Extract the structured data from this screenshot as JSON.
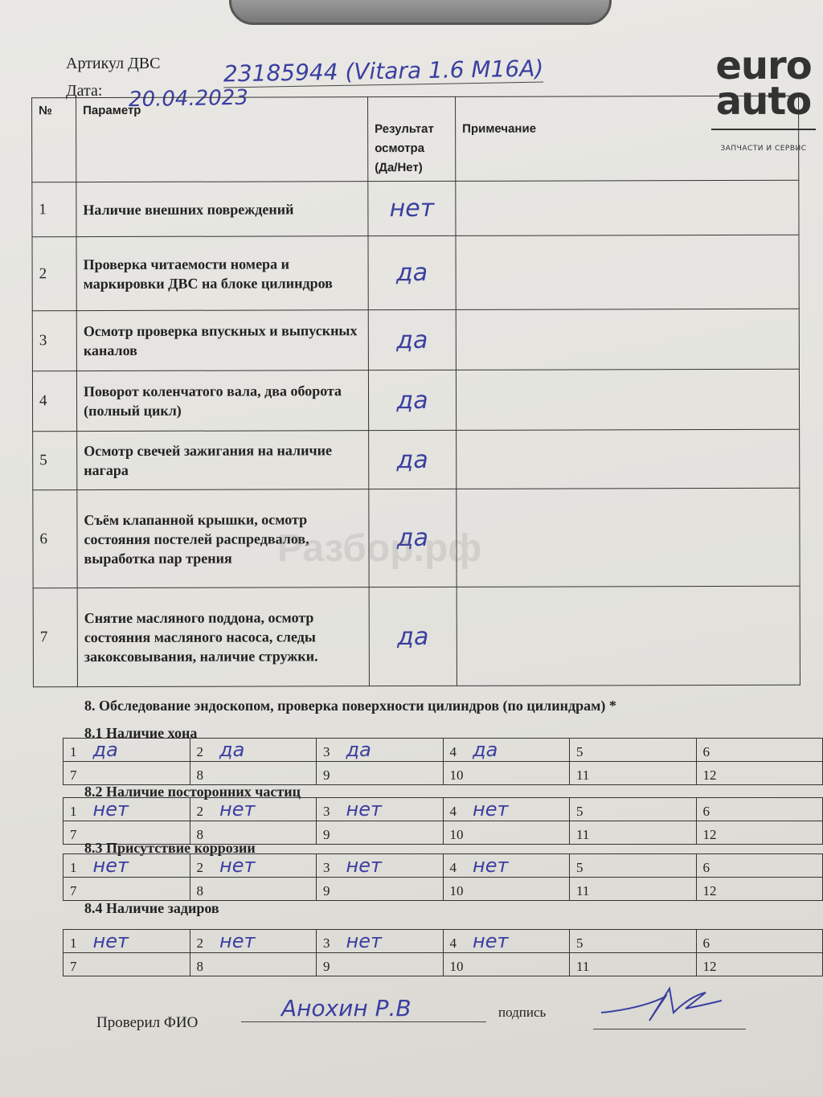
{
  "header": {
    "article_label": "Артикул ДВС",
    "article_value": "23185944 (Vitara 1.6 M16A)",
    "date_label": "Дата:",
    "date_value": "20.04.2023"
  },
  "logo": {
    "line1": "euro",
    "line2": "auto",
    "tagline": "ЗАПЧАСТИ И СЕРВИС"
  },
  "table": {
    "columns": [
      "№",
      "Параметр",
      "Результат осмотра (Да/Нет)",
      "Примечание"
    ],
    "rows": [
      {
        "n": "1",
        "param": "Наличие внешних повреждений",
        "result": "нет",
        "note": ""
      },
      {
        "n": "2",
        "param": "Проверка читаемости номера и маркировки ДВС на блоке цилиндров",
        "result": "да",
        "note": ""
      },
      {
        "n": "3",
        "param": "Осмотр проверка впускных и выпускных каналов",
        "result": "да",
        "note": ""
      },
      {
        "n": "4",
        "param": "Поворот коленчатого вала, два оборота (полный цикл)",
        "result": "да",
        "note": ""
      },
      {
        "n": "5",
        "param": "Осмотр свечей зажигания на наличие нагара",
        "result": "да",
        "note": ""
      },
      {
        "n": "6",
        "param": "Съём клапанной крышки, осмотр состояния постелей распредвалов, выработка пар трения",
        "result": "да",
        "note": ""
      },
      {
        "n": "7",
        "param": "Снятие масляного поддона, осмотр состояния масляного насоса, следы закоксовывания, наличие стружки.",
        "result": "да",
        "note": ""
      }
    ]
  },
  "section8": {
    "title": "8. Обследование эндоскопом, проверка поверхности цилиндров (по цилиндрам) *",
    "subsections": [
      {
        "title": "8.1 Наличие хона",
        "cells": [
          [
            "1",
            "да"
          ],
          [
            "2",
            "да"
          ],
          [
            "3",
            "да"
          ],
          [
            "4",
            "да"
          ],
          [
            "5",
            ""
          ],
          [
            "6",
            ""
          ],
          [
            "7",
            ""
          ],
          [
            "8",
            ""
          ],
          [
            "9",
            ""
          ],
          [
            "10",
            ""
          ],
          [
            "11",
            ""
          ],
          [
            "12",
            ""
          ]
        ]
      },
      {
        "title": "8.2 Наличие посторонних частиц",
        "cells": [
          [
            "1",
            "нет"
          ],
          [
            "2",
            "нет"
          ],
          [
            "3",
            "нет"
          ],
          [
            "4",
            "нет"
          ],
          [
            "5",
            ""
          ],
          [
            "6",
            ""
          ],
          [
            "7",
            ""
          ],
          [
            "8",
            ""
          ],
          [
            "9",
            ""
          ],
          [
            "10",
            ""
          ],
          [
            "11",
            ""
          ],
          [
            "12",
            ""
          ]
        ]
      },
      {
        "title": "8.3 Присутствие коррозии",
        "cells": [
          [
            "1",
            "нет"
          ],
          [
            "2",
            "нет"
          ],
          [
            "3",
            "нет"
          ],
          [
            "4",
            "нет"
          ],
          [
            "5",
            ""
          ],
          [
            "6",
            ""
          ],
          [
            "7",
            ""
          ],
          [
            "8",
            ""
          ],
          [
            "9",
            ""
          ],
          [
            "10",
            ""
          ],
          [
            "11",
            ""
          ],
          [
            "12",
            ""
          ]
        ]
      },
      {
        "title": "8.4 Наличие задиров",
        "cells": [
          [
            "1",
            "нет"
          ],
          [
            "2",
            "нет"
          ],
          [
            "3",
            "нет"
          ],
          [
            "4",
            "нет"
          ],
          [
            "5",
            ""
          ],
          [
            "6",
            ""
          ],
          [
            "7",
            ""
          ],
          [
            "8",
            ""
          ],
          [
            "9",
            ""
          ],
          [
            "10",
            ""
          ],
          [
            "11",
            ""
          ],
          [
            "12",
            ""
          ]
        ]
      }
    ]
  },
  "footer": {
    "checked_label": "Проверил ФИО",
    "checked_value": "Анохин Р.В",
    "signature_label": "подпись"
  },
  "watermark": "Разбор.рф"
}
